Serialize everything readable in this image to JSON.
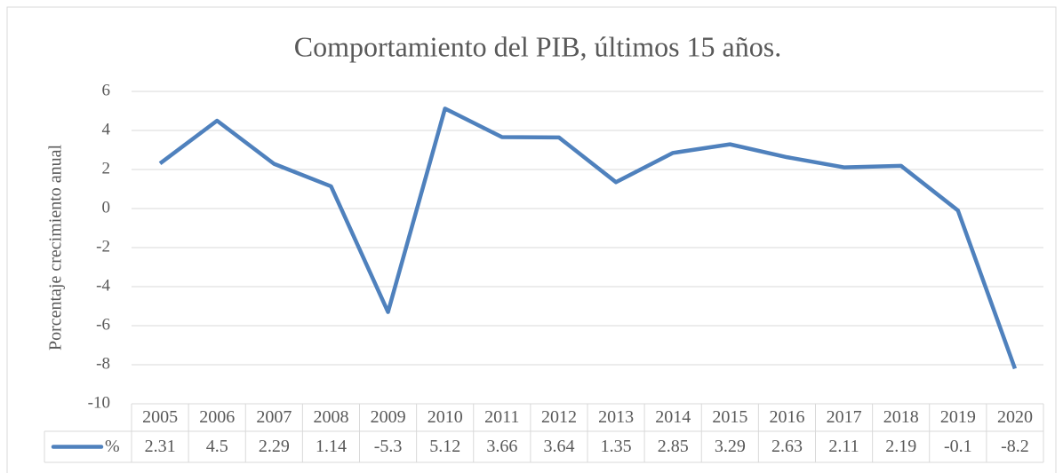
{
  "chart_data": {
    "type": "line",
    "title": "Comportamiento del PIB, últimos 15 años.",
    "y_label": "Porcentaje crecimiento anual",
    "categories": [
      "2005",
      "2006",
      "2007",
      "2008",
      "2009",
      "2010",
      "2011",
      "2012",
      "2013",
      "2014",
      "2015",
      "2016",
      "2017",
      "2018",
      "2019",
      "2020"
    ],
    "series": [
      {
        "name": "%",
        "color": "#4f81bd",
        "values": [
          2.31,
          4.5,
          2.29,
          1.14,
          -5.3,
          5.12,
          3.66,
          3.64,
          1.35,
          2.85,
          3.29,
          2.63,
          2.11,
          2.19,
          -0.1,
          -8.2
        ]
      }
    ],
    "ylim": [
      -10,
      6
    ],
    "yticks": [
      -10,
      -8,
      -6,
      -4,
      -2,
      0,
      2,
      4,
      6
    ],
    "grid": true,
    "data_table": true
  }
}
